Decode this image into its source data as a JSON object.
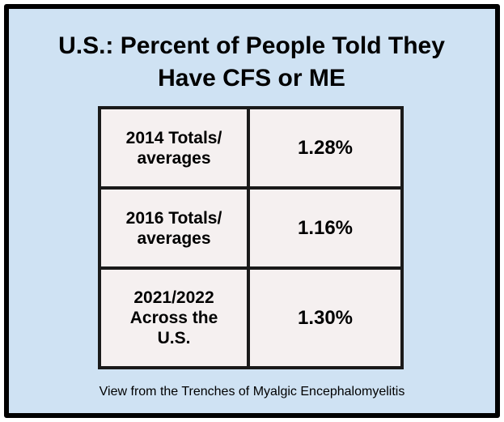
{
  "header": {
    "title": "U.S.: Percent of People Told They Have CFS or ME"
  },
  "table": {
    "rows": [
      [
        "2014 Totals/ averages",
        "1.28%"
      ],
      [
        "2016 Totals/ averages",
        "1.16%"
      ],
      [
        "2021/2022 Across the U.S.",
        "1.30%"
      ]
    ]
  },
  "footer": {
    "credit": "View from the Trenches of Myalgic Encephalomyelitis"
  }
}
